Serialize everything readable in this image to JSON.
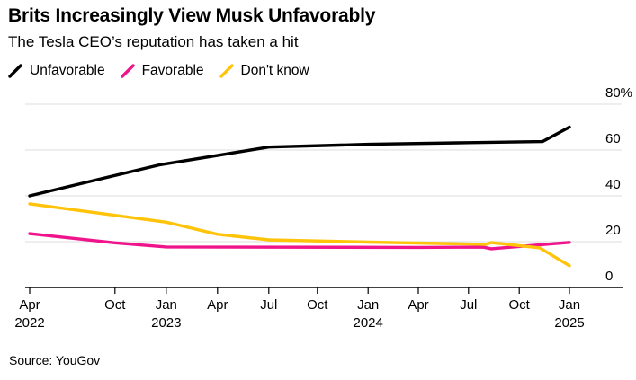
{
  "header": {
    "title": "Brits Increasingly View Musk Unfavorably",
    "subtitle": "The Tesla CEO’s reputation has taken a hit"
  },
  "legend": {
    "items": [
      {
        "label": "Unfavorable",
        "color": "#000000"
      },
      {
        "label": "Favorable",
        "color": "#f0148c"
      },
      {
        "label": "Don't know",
        "color": "#ffc40a"
      }
    ]
  },
  "footer": {
    "source": "Source: YouGov"
  },
  "chart_data": {
    "type": "line",
    "title": "Brits Increasingly View Musk Unfavorably",
    "subtitle": "The Tesla CEO’s reputation has taken a hit",
    "source": "Source: YouGov",
    "unit": "percent",
    "x_range": "Apr 2022 – Jan 2025",
    "ylim": [
      0,
      80
    ],
    "grid": "horizontal",
    "grid_color": "#dcdcdc",
    "axis_color": "#000000",
    "legend_position": "top-left",
    "yticks": [
      {
        "label": "80%",
        "value": 80
      },
      {
        "label": "60",
        "value": 60
      },
      {
        "label": "40",
        "value": 40
      },
      {
        "label": "20",
        "value": 20
      },
      {
        "label": "0",
        "value": 0
      }
    ],
    "xticks": [
      {
        "pos": 0.0,
        "line1": "Apr",
        "line2": "2022"
      },
      {
        "pos": 0.158,
        "line1": "Oct"
      },
      {
        "pos": 0.253,
        "line1": "Jan",
        "line2": "2023"
      },
      {
        "pos": 0.348,
        "line1": "Apr"
      },
      {
        "pos": 0.443,
        "line1": "Jul"
      },
      {
        "pos": 0.533,
        "line1": "Oct"
      },
      {
        "pos": 0.627,
        "line1": "Jan",
        "line2": "2024"
      },
      {
        "pos": 0.72,
        "line1": "Apr"
      },
      {
        "pos": 0.813,
        "line1": "Jul"
      },
      {
        "pos": 0.907,
        "line1": "Oct"
      },
      {
        "pos": 1.0,
        "line1": "Jan",
        "line2": "2025"
      }
    ],
    "series": [
      {
        "name": "Unfavorable",
        "color": "#000000",
        "points": [
          {
            "t": 0.0,
            "date": "Apr 2022",
            "value": 40
          },
          {
            "t": 0.24,
            "date": "Jan 2023",
            "value": 53.5
          },
          {
            "t": 0.443,
            "date": "Jul 2023",
            "value": 61.3
          },
          {
            "t": 0.627,
            "date": "Jan 2024",
            "value": 62.5
          },
          {
            "t": 0.813,
            "date": "Jul 2024",
            "value": 63.2
          },
          {
            "t": 0.95,
            "date": "Nov 2024",
            "value": 63.7
          },
          {
            "t": 1.0,
            "date": "Jan 2025",
            "value": 70
          }
        ]
      },
      {
        "name": "Favorable",
        "color": "#f0148c",
        "points": [
          {
            "t": 0.0,
            "date": "Apr 2022",
            "value": 23.5
          },
          {
            "t": 0.158,
            "date": "Oct 2022",
            "value": 19.5
          },
          {
            "t": 0.253,
            "date": "Jan 2023",
            "value": 17.7
          },
          {
            "t": 0.72,
            "date": "Apr 2024",
            "value": 17.5
          },
          {
            "t": 0.84,
            "date": "Sep 2024",
            "value": 17.6
          },
          {
            "t": 0.855,
            "date": "Oct 2024",
            "value": 16.9
          },
          {
            "t": 1.0,
            "date": "Jan 2025",
            "value": 19.7
          }
        ]
      },
      {
        "name": "Don't know",
        "color": "#ffc40a",
        "points": [
          {
            "t": 0.0,
            "date": "Apr 2022",
            "value": 36.5
          },
          {
            "t": 0.158,
            "date": "Oct 2022",
            "value": 31.5
          },
          {
            "t": 0.253,
            "date": "Jan 2023",
            "value": 28.5
          },
          {
            "t": 0.348,
            "date": "Apr 2023",
            "value": 23.2
          },
          {
            "t": 0.443,
            "date": "Jul 2023",
            "value": 20.8
          },
          {
            "t": 0.627,
            "date": "Jan 2024",
            "value": 19.8
          },
          {
            "t": 0.813,
            "date": "Jul 2024",
            "value": 19
          },
          {
            "t": 0.845,
            "date": "Sep 2024",
            "value": 18.8
          },
          {
            "t": 0.855,
            "date": "Oct 2024",
            "value": 19.6
          },
          {
            "t": 0.945,
            "date": "Dec 2024",
            "value": 17.3
          },
          {
            "t": 1.0,
            "date": "Jan 2025",
            "value": 9.5
          }
        ]
      }
    ]
  }
}
